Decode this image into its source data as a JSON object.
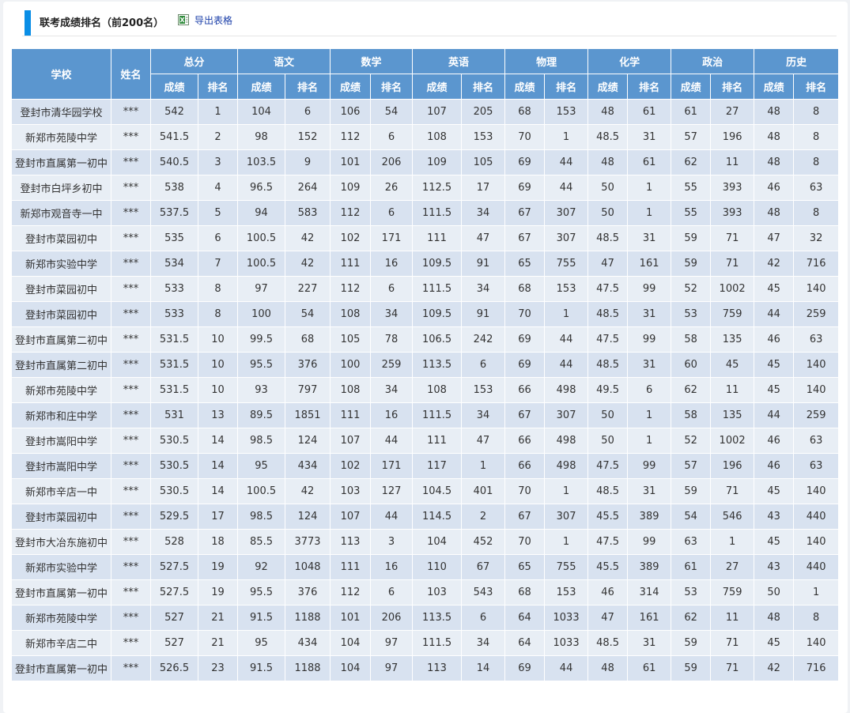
{
  "header": {
    "title": "联考成绩排名（前200名）",
    "export_label": "导出表格",
    "export_icon": "excel-icon"
  },
  "table": {
    "col_school": "学校",
    "col_name": "姓名",
    "subjects": [
      "总分",
      "语文",
      "数学",
      "英语",
      "物理",
      "化学",
      "政治",
      "历史"
    ],
    "sub_score": "成绩",
    "sub_rank": "排名",
    "rows": [
      [
        "登封市清华园学校",
        "***",
        "542",
        "1",
        "104",
        "6",
        "106",
        "54",
        "107",
        "205",
        "68",
        "153",
        "48",
        "61",
        "61",
        "27",
        "48",
        "8"
      ],
      [
        "新郑市苑陵中学",
        "***",
        "541.5",
        "2",
        "98",
        "152",
        "112",
        "6",
        "108",
        "153",
        "70",
        "1",
        "48.5",
        "31",
        "57",
        "196",
        "48",
        "8"
      ],
      [
        "登封市直属第一初中",
        "***",
        "540.5",
        "3",
        "103.5",
        "9",
        "101",
        "206",
        "109",
        "105",
        "69",
        "44",
        "48",
        "61",
        "62",
        "11",
        "48",
        "8"
      ],
      [
        "登封市白坪乡初中",
        "***",
        "538",
        "4",
        "96.5",
        "264",
        "109",
        "26",
        "112.5",
        "17",
        "69",
        "44",
        "50",
        "1",
        "55",
        "393",
        "46",
        "63"
      ],
      [
        "新郑市观音寺一中",
        "***",
        "537.5",
        "5",
        "94",
        "583",
        "112",
        "6",
        "111.5",
        "34",
        "67",
        "307",
        "50",
        "1",
        "55",
        "393",
        "48",
        "8"
      ],
      [
        "登封市菜园初中",
        "***",
        "535",
        "6",
        "100.5",
        "42",
        "102",
        "171",
        "111",
        "47",
        "67",
        "307",
        "48.5",
        "31",
        "59",
        "71",
        "47",
        "32"
      ],
      [
        "新郑市实验中学",
        "***",
        "534",
        "7",
        "100.5",
        "42",
        "111",
        "16",
        "109.5",
        "91",
        "65",
        "755",
        "47",
        "161",
        "59",
        "71",
        "42",
        "716"
      ],
      [
        "登封市菜园初中",
        "***",
        "533",
        "8",
        "97",
        "227",
        "112",
        "6",
        "111.5",
        "34",
        "68",
        "153",
        "47.5",
        "99",
        "52",
        "1002",
        "45",
        "140"
      ],
      [
        "登封市菜园初中",
        "***",
        "533",
        "8",
        "100",
        "54",
        "108",
        "34",
        "109.5",
        "91",
        "70",
        "1",
        "48.5",
        "31",
        "53",
        "759",
        "44",
        "259"
      ],
      [
        "登封市直属第二初中",
        "***",
        "531.5",
        "10",
        "99.5",
        "68",
        "105",
        "78",
        "106.5",
        "242",
        "69",
        "44",
        "47.5",
        "99",
        "58",
        "135",
        "46",
        "63"
      ],
      [
        "登封市直属第二初中",
        "***",
        "531.5",
        "10",
        "95.5",
        "376",
        "100",
        "259",
        "113.5",
        "6",
        "69",
        "44",
        "48.5",
        "31",
        "60",
        "45",
        "45",
        "140"
      ],
      [
        "新郑市苑陵中学",
        "***",
        "531.5",
        "10",
        "93",
        "797",
        "108",
        "34",
        "108",
        "153",
        "66",
        "498",
        "49.5",
        "6",
        "62",
        "11",
        "45",
        "140"
      ],
      [
        "新郑市和庄中学",
        "***",
        "531",
        "13",
        "89.5",
        "1851",
        "111",
        "16",
        "111.5",
        "34",
        "67",
        "307",
        "50",
        "1",
        "58",
        "135",
        "44",
        "259"
      ],
      [
        "登封市嵩阳中学",
        "***",
        "530.5",
        "14",
        "98.5",
        "124",
        "107",
        "44",
        "111",
        "47",
        "66",
        "498",
        "50",
        "1",
        "52",
        "1002",
        "46",
        "63"
      ],
      [
        "登封市嵩阳中学",
        "***",
        "530.5",
        "14",
        "95",
        "434",
        "102",
        "171",
        "117",
        "1",
        "66",
        "498",
        "47.5",
        "99",
        "57",
        "196",
        "46",
        "63"
      ],
      [
        "新郑市辛店一中",
        "***",
        "530.5",
        "14",
        "100.5",
        "42",
        "103",
        "127",
        "104.5",
        "401",
        "70",
        "1",
        "48.5",
        "31",
        "59",
        "71",
        "45",
        "140"
      ],
      [
        "登封市菜园初中",
        "***",
        "529.5",
        "17",
        "98.5",
        "124",
        "107",
        "44",
        "114.5",
        "2",
        "67",
        "307",
        "45.5",
        "389",
        "54",
        "546",
        "43",
        "440"
      ],
      [
        "登封市大冶东施初中",
        "***",
        "528",
        "18",
        "85.5",
        "3773",
        "113",
        "3",
        "104",
        "452",
        "70",
        "1",
        "47.5",
        "99",
        "63",
        "1",
        "45",
        "140"
      ],
      [
        "新郑市实验中学",
        "***",
        "527.5",
        "19",
        "92",
        "1048",
        "111",
        "16",
        "110",
        "67",
        "65",
        "755",
        "45.5",
        "389",
        "61",
        "27",
        "43",
        "440"
      ],
      [
        "登封市直属第一初中",
        "***",
        "527.5",
        "19",
        "95.5",
        "376",
        "112",
        "6",
        "103",
        "543",
        "68",
        "153",
        "46",
        "314",
        "53",
        "759",
        "50",
        "1"
      ],
      [
        "新郑市苑陵中学",
        "***",
        "527",
        "21",
        "91.5",
        "1188",
        "101",
        "206",
        "113.5",
        "6",
        "64",
        "1033",
        "47",
        "161",
        "62",
        "11",
        "48",
        "8"
      ],
      [
        "新郑市辛店二中",
        "***",
        "527",
        "21",
        "95",
        "434",
        "104",
        "97",
        "111.5",
        "34",
        "64",
        "1033",
        "48.5",
        "31",
        "59",
        "71",
        "45",
        "140"
      ],
      [
        "登封市直属第一初中",
        "***",
        "526.5",
        "23",
        "91.5",
        "1188",
        "104",
        "97",
        "113",
        "14",
        "69",
        "44",
        "48",
        "61",
        "59",
        "71",
        "42",
        "716"
      ]
    ]
  }
}
